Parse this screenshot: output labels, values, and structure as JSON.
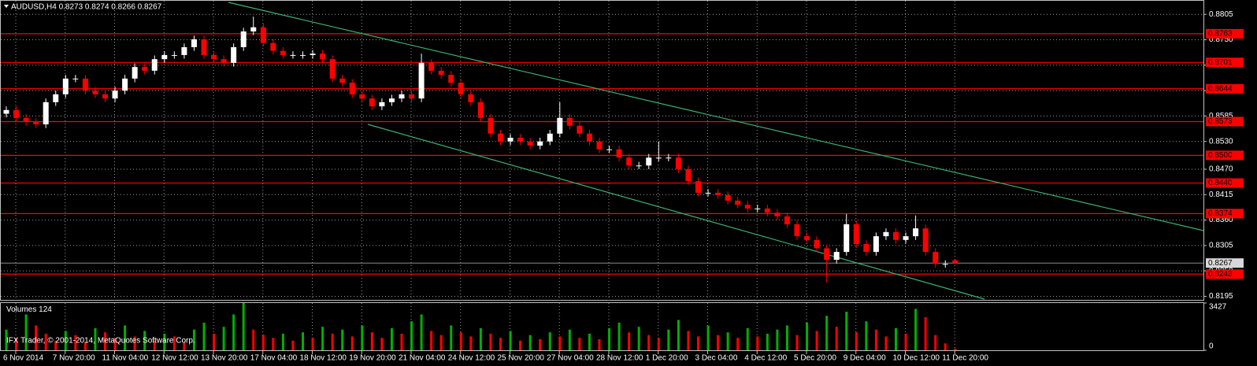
{
  "chart_data": {
    "type": "candlestick",
    "title": "AUDUSD,H4 0.8273 0.8274 0.8266 0.8267",
    "categories": [
      "6 Nov 2014",
      null,
      null,
      null,
      null,
      "7 Nov 20:00",
      null,
      null,
      null,
      null,
      "11 Nov 04:00",
      null,
      null,
      null,
      null,
      "12 Nov 12:00",
      null,
      null,
      null,
      null,
      "13 Nov 20:00",
      null,
      null,
      null,
      null,
      "17 Nov 04:00",
      null,
      null,
      null,
      null,
      "18 Nov 12:00",
      null,
      null,
      null,
      null,
      "19 Nov 20:00",
      null,
      null,
      null,
      null,
      "21 Nov 04:00",
      null,
      null,
      null,
      null,
      "24 Nov 12:00",
      null,
      null,
      null,
      null,
      "25 Nov 20:00",
      null,
      null,
      null,
      null,
      "27 Nov 04:00",
      null,
      null,
      null,
      null,
      "28 Nov 12:00",
      null,
      null,
      null,
      null,
      "1 Dec 20:00",
      null,
      null,
      null,
      null,
      "3 Dec 04:00",
      null,
      null,
      null,
      null,
      "4 Dec 12:00",
      null,
      null,
      null,
      null,
      "5 Dec 20:00",
      null,
      null,
      null,
      null,
      "9 Dec 04:00",
      null,
      null,
      null,
      null,
      "10 Dec 12:00",
      null,
      null,
      null,
      null,
      "11 Dec 20:00",
      null
    ],
    "open": [
      0.859,
      0.8598,
      0.8581,
      0.8572,
      0.8567,
      0.8615,
      0.8632,
      0.8666,
      0.8666,
      0.864,
      0.8632,
      0.8623,
      0.864,
      0.8666,
      0.8691,
      0.8683,
      0.8708,
      0.8717,
      0.8717,
      0.8734,
      0.8751,
      0.8717,
      0.8708,
      0.87,
      0.8734,
      0.8768,
      0.8777,
      0.8743,
      0.8726,
      0.8717,
      0.8717,
      0.8717,
      0.872,
      0.8708,
      0.8666,
      0.8657,
      0.8632,
      0.8623,
      0.8606,
      0.8615,
      0.8623,
      0.8632,
      0.8623,
      0.87,
      0.8683,
      0.8674,
      0.8657,
      0.8632,
      0.8615,
      0.8581,
      0.8547,
      0.853,
      0.8538,
      0.853,
      0.8521,
      0.853,
      0.8547,
      0.8581,
      0.8564,
      0.8547,
      0.853,
      0.8513,
      0.8513,
      0.8495,
      0.8478,
      0.8478,
      0.8495,
      0.8495,
      0.8495,
      0.847,
      0.8444,
      0.8419,
      0.8419,
      0.8414,
      0.8402,
      0.8393,
      0.8385,
      0.8385,
      0.8376,
      0.8368,
      0.8351,
      0.8325,
      0.8317,
      0.8299,
      0.8274,
      0.8291,
      0.8351,
      0.8308,
      0.8291,
      0.8325,
      0.8334,
      0.8317,
      0.8325,
      0.8342,
      0.8291,
      0.8265,
      0.8273
    ],
    "high": [
      0.8606,
      0.8606,
      0.8589,
      0.858,
      0.8623,
      0.864,
      0.8674,
      0.8674,
      0.8674,
      0.8648,
      0.864,
      0.8648,
      0.8674,
      0.8699,
      0.8699,
      0.8716,
      0.8725,
      0.8725,
      0.8742,
      0.8759,
      0.8759,
      0.8725,
      0.8716,
      0.8742,
      0.8776,
      0.88,
      0.8785,
      0.8751,
      0.8734,
      0.8725,
      0.8725,
      0.8728,
      0.8728,
      0.8716,
      0.8674,
      0.8665,
      0.864,
      0.8631,
      0.8623,
      0.8631,
      0.864,
      0.864,
      0.872,
      0.8708,
      0.8691,
      0.8682,
      0.8665,
      0.864,
      0.8623,
      0.8589,
      0.8555,
      0.8546,
      0.8546,
      0.8538,
      0.8538,
      0.8555,
      0.8615,
      0.8589,
      0.8572,
      0.8555,
      0.8538,
      0.8521,
      0.8521,
      0.8503,
      0.8486,
      0.8503,
      0.853,
      0.8503,
      0.8503,
      0.8478,
      0.8452,
      0.8427,
      0.8427,
      0.8422,
      0.841,
      0.8401,
      0.8393,
      0.8393,
      0.8384,
      0.8376,
      0.8359,
      0.8333,
      0.8325,
      0.8307,
      0.8299,
      0.8373,
      0.8359,
      0.8316,
      0.8333,
      0.8342,
      0.8342,
      0.8333,
      0.837,
      0.835,
      0.8299,
      0.8273,
      0.8274
    ],
    "low": [
      0.8582,
      0.8573,
      0.8564,
      0.8559,
      0.8559,
      0.8607,
      0.8624,
      0.8658,
      0.8632,
      0.8624,
      0.8615,
      0.8615,
      0.8632,
      0.8658,
      0.8675,
      0.8675,
      0.87,
      0.8709,
      0.8709,
      0.8726,
      0.8709,
      0.87,
      0.8692,
      0.8692,
      0.8726,
      0.876,
      0.8735,
      0.8718,
      0.8709,
      0.8709,
      0.8709,
      0.8709,
      0.87,
      0.8658,
      0.8649,
      0.8624,
      0.8615,
      0.8598,
      0.8598,
      0.8607,
      0.8615,
      0.8615,
      0.8615,
      0.8675,
      0.8666,
      0.8649,
      0.8624,
      0.8607,
      0.8573,
      0.8539,
      0.8522,
      0.8522,
      0.8522,
      0.8513,
      0.8513,
      0.8522,
      0.8539,
      0.8556,
      0.8539,
      0.8522,
      0.8505,
      0.8505,
      0.8487,
      0.847,
      0.847,
      0.847,
      0.8487,
      0.8487,
      0.8462,
      0.8436,
      0.8411,
      0.8411,
      0.8406,
      0.8394,
      0.8385,
      0.8377,
      0.8377,
      0.8368,
      0.836,
      0.8343,
      0.8317,
      0.8309,
      0.8291,
      0.8225,
      0.8266,
      0.8283,
      0.83,
      0.8283,
      0.8283,
      0.8317,
      0.8309,
      0.8309,
      0.8317,
      0.8283,
      0.8257,
      0.8257,
      0.8266
    ],
    "close": [
      0.8598,
      0.8581,
      0.8572,
      0.8567,
      0.8615,
      0.8632,
      0.8666,
      0.8666,
      0.864,
      0.8632,
      0.8623,
      0.864,
      0.8666,
      0.8691,
      0.8683,
      0.8708,
      0.8717,
      0.8717,
      0.8734,
      0.8751,
      0.8717,
      0.8708,
      0.87,
      0.8734,
      0.8768,
      0.8777,
      0.8743,
      0.8726,
      0.8717,
      0.8717,
      0.8717,
      0.872,
      0.8708,
      0.8666,
      0.8657,
      0.8632,
      0.8623,
      0.8606,
      0.8615,
      0.8623,
      0.8632,
      0.8623,
      0.87,
      0.8683,
      0.8674,
      0.8657,
      0.8632,
      0.8615,
      0.8581,
      0.8547,
      0.853,
      0.8538,
      0.853,
      0.8521,
      0.853,
      0.8547,
      0.8581,
      0.8564,
      0.8547,
      0.853,
      0.8513,
      0.8513,
      0.8495,
      0.8478,
      0.8478,
      0.8495,
      0.8495,
      0.8495,
      0.847,
      0.8444,
      0.8419,
      0.8419,
      0.8414,
      0.8402,
      0.8393,
      0.8385,
      0.8385,
      0.8376,
      0.8368,
      0.8351,
      0.8325,
      0.8317,
      0.8299,
      0.8274,
      0.8291,
      0.8351,
      0.8308,
      0.8291,
      0.8325,
      0.8334,
      0.8317,
      0.8325,
      0.8342,
      0.8291,
      0.8265,
      0.8265,
      0.8267
    ],
    "up_color": "#ffffff",
    "down_color": "#ff0000",
    "ylim": [
      0.8189,
      0.8836
    ],
    "yticks": [
      {
        "value": 0.8805,
        "label": "0.8805"
      },
      {
        "value": 0.875,
        "label": "0.8750"
      },
      {
        "value": 0.8695,
        "label": "0.8695"
      },
      {
        "value": 0.864,
        "label": "0.8640"
      },
      {
        "value": 0.8585,
        "label": "0.8585"
      },
      {
        "value": 0.853,
        "label": "0.8530"
      },
      {
        "value": 0.847,
        "label": "0.8470"
      },
      {
        "value": 0.8415,
        "label": "0.8415"
      },
      {
        "value": 0.836,
        "label": "0.8360"
      },
      {
        "value": 0.8305,
        "label": "0.8305"
      },
      {
        "value": 0.825,
        "label": "0.8250"
      },
      {
        "value": 0.8195,
        "label": "0.8195"
      }
    ],
    "grid": true,
    "levels": [
      {
        "value": 0.8763,
        "label": "0.8763"
      },
      {
        "value": 0.8701,
        "label": "0.8701"
      },
      {
        "value": 0.8644,
        "label": "0.8644"
      },
      {
        "value": 0.8573,
        "label": "0.8573"
      },
      {
        "value": 0.85,
        "label": "0.8500"
      },
      {
        "value": 0.844,
        "label": "0.8440"
      },
      {
        "value": 0.8374,
        "label": "0.8374"
      },
      {
        "value": 0.8243,
        "label": "0.8243"
      }
    ],
    "level_color": "#ff0000",
    "bid": {
      "value": 0.8267,
      "label": "0.8267"
    },
    "volume": {
      "label": "Volumes",
      "values": [
        1500,
        900,
        2600,
        1800,
        1200,
        700,
        1400,
        1100,
        600,
        1600,
        1300,
        900,
        1800,
        1000,
        1400,
        700,
        1200,
        1000,
        600,
        1500,
        2000,
        1200,
        1700,
        2600,
        3427,
        1500,
        1100,
        900,
        1200,
        700,
        1300,
        900,
        1700,
        1200,
        1500,
        1000,
        1800,
        1300,
        900,
        1600,
        1200,
        2100,
        2600,
        1400,
        1100,
        1800,
        1300,
        1000,
        1600,
        1200,
        900,
        1400,
        700,
        1100,
        800,
        1300,
        1000,
        1500,
        900,
        1200,
        800,
        1600,
        2000,
        1300,
        1700,
        1100,
        900,
        1500,
        2200,
        1400,
        1000,
        1800,
        1100,
        1300,
        900,
        1600,
        1000,
        1200,
        1500,
        1800,
        1100,
        2000,
        1400,
        2500,
        1700,
        2800,
        1300,
        2100,
        1500,
        1000,
        1600,
        1200,
        3000,
        2400,
        1100,
        500,
        124
      ],
      "up_color": "#00b000",
      "down_color": "#ff0000",
      "ylim": [
        0,
        3427
      ],
      "yticks": [
        0,
        3427
      ]
    },
    "footer": "IFX Trader, © 2001-2014, MetaQuotes Software Corp."
  }
}
